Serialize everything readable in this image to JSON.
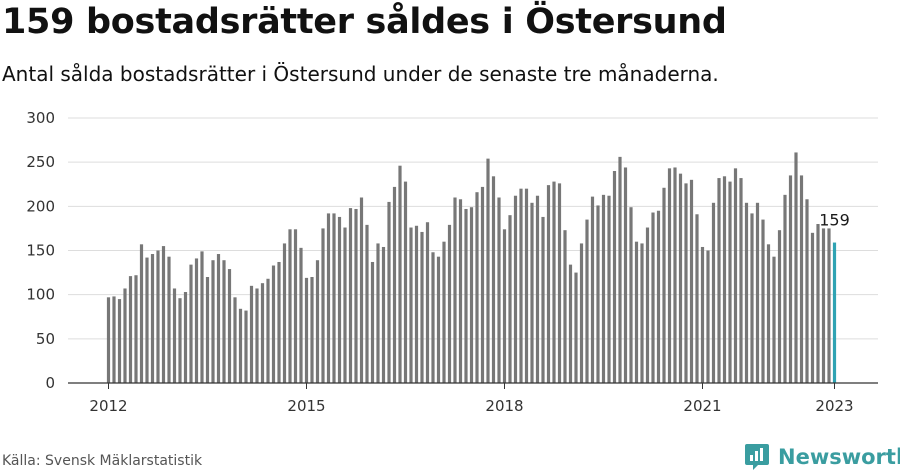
{
  "title": "159 bostadsrätter såldes i Östersund",
  "subtitle": "Antal sålda bostadsrätter i Östersund under de senaste tre månaderna.",
  "source": "Källa: Svensk Mäklarstatistik",
  "brand": {
    "name": "Newsworthy",
    "icon": "newsworthy-logo-icon",
    "color": "#3a9da0"
  },
  "colors": {
    "bar": "#777777",
    "highlight": "#2fa3b3",
    "grid": "#dddddd",
    "axis": "#333333"
  },
  "chart_data": {
    "type": "bar",
    "title": "159 bostadsrätter såldes i Östersund",
    "subtitle": "Antal sålda bostadsrätter i Östersund under de senaste tre månaderna.",
    "xlabel": "",
    "ylabel": "",
    "ylim": [
      0,
      300
    ],
    "y_ticks": [
      0,
      50,
      100,
      150,
      200,
      250,
      300
    ],
    "x_ticks": [
      {
        "label": "2012",
        "index": 0
      },
      {
        "label": "2015",
        "index": 36
      },
      {
        "label": "2018",
        "index": 72
      },
      {
        "label": "2021",
        "index": 108
      },
      {
        "label": "2023",
        "index": 132
      }
    ],
    "grid": true,
    "legend": "none",
    "start": "2012-01",
    "frequency": "monthly",
    "highlight_last": true,
    "annotation": {
      "index": 132,
      "text": "159"
    },
    "values": [
      97,
      98,
      95,
      107,
      121,
      122,
      157,
      142,
      146,
      150,
      155,
      143,
      107,
      96,
      103,
      134,
      141,
      149,
      120,
      139,
      146,
      139,
      129,
      97,
      84,
      82,
      110,
      107,
      113,
      118,
      133,
      137,
      158,
      174,
      174,
      153,
      119,
      120,
      139,
      175,
      192,
      192,
      188,
      176,
      198,
      197,
      210,
      179,
      137,
      158,
      154,
      205,
      222,
      246,
      228,
      176,
      178,
      171,
      182,
      148,
      143,
      160,
      179,
      210,
      208,
      197,
      199,
      216,
      222,
      254,
      234,
      210,
      174,
      190,
      212,
      220,
      220,
      204,
      212,
      188,
      224,
      228,
      226,
      173,
      134,
      125,
      158,
      185,
      211,
      201,
      213,
      212,
      240,
      256,
      244,
      199,
      160,
      158,
      176,
      193,
      195,
      221,
      243,
      244,
      237,
      226,
      230,
      191,
      154,
      150,
      204,
      232,
      234,
      228,
      243,
      232,
      204,
      192,
      204,
      185,
      157,
      143,
      173,
      213,
      235,
      261,
      235,
      208,
      170,
      180,
      175,
      175,
      159
    ]
  }
}
